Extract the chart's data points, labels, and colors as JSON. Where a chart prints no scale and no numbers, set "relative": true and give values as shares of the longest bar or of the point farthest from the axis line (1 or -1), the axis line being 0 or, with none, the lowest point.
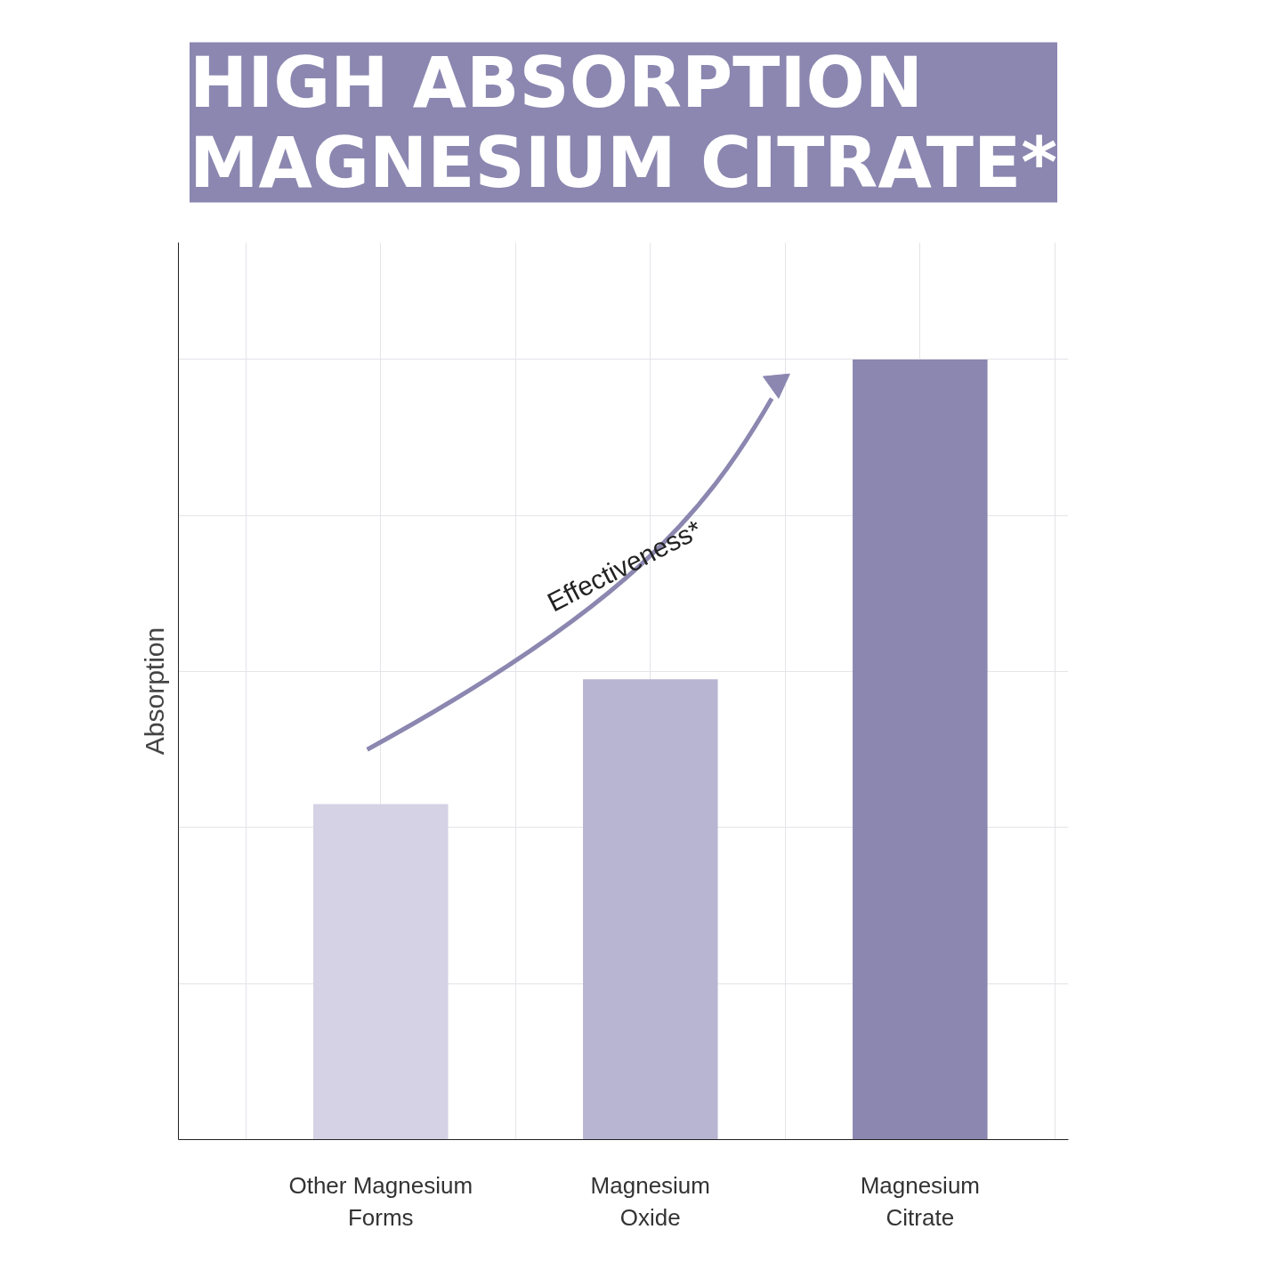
{
  "chart_data": {
    "type": "bar",
    "title": "HIGH ABSORPTION\nMAGNESIUM CITRATE*",
    "ylabel": "Absorption",
    "categories": [
      "Other Magnesium\nForms",
      "Magnesium\nOxide",
      "Magnesium\nCitrate"
    ],
    "values": [
      0.43,
      0.59,
      1
    ],
    "colors": [
      "#d4d2e4",
      "#b8b5d2",
      "#8b87b0"
    ],
    "relative": true,
    "grid": true,
    "annotations": [
      "Effectiveness*"
    ]
  }
}
